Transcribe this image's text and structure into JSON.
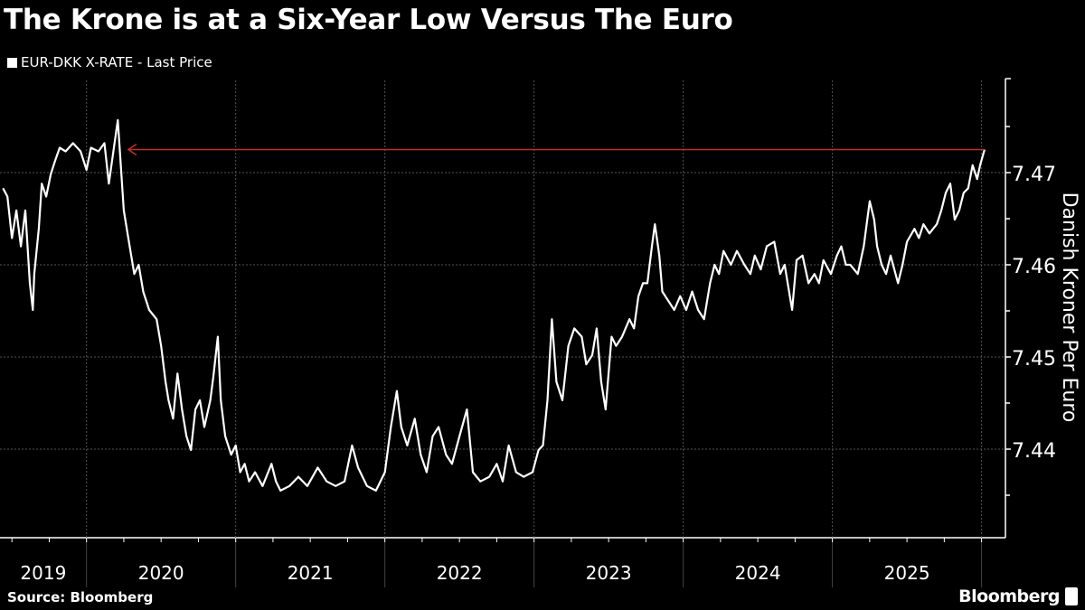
{
  "chart_data": {
    "type": "line",
    "title": "The Krone is at a Six-Year Low Versus The Euro",
    "legend": [
      "EUR-DKK X-RATE - Last Price"
    ],
    "legend_placement": "top-left",
    "ylabel": "Danish Kroner Per Euro",
    "xlabel": "",
    "ylim": [
      7.43,
      7.48
    ],
    "yticks": [
      "7.44",
      "7.45",
      "7.46",
      "7.47"
    ],
    "xticks": [
      "2019",
      "2020",
      "2021",
      "2022",
      "2023",
      "2024",
      "2025"
    ],
    "xlim": [
      2019.42,
      2026.16
    ],
    "grid": true,
    "annotation": {
      "type": "arrow",
      "value": 7.4725,
      "from": 2026.02,
      "to": 2020.28,
      "color": "#c0302a"
    },
    "series": [
      {
        "name": "EUR-DKK X-RATE - Last Price",
        "color": "#ffffff",
        "x": [
          2019.44,
          2019.47,
          2019.5,
          2019.53,
          2019.56,
          2019.59,
          2019.62,
          2019.64,
          2019.65,
          2019.68,
          2019.7,
          2019.73,
          2019.76,
          2019.79,
          2019.82,
          2019.86,
          2019.91,
          2019.96,
          2020.0,
          2020.03,
          2020.08,
          2020.12,
          2020.15,
          2020.18,
          2020.21,
          2020.23,
          2020.25,
          2020.28,
          2020.32,
          2020.35,
          2020.38,
          2020.42,
          2020.47,
          2020.5,
          2020.53,
          2020.55,
          2020.58,
          2020.61,
          2020.64,
          2020.67,
          2020.7,
          2020.73,
          2020.76,
          2020.79,
          2020.83,
          2020.85,
          2020.88,
          2020.9,
          2020.93,
          2020.97,
          2021.0,
          2021.03,
          2021.06,
          2021.09,
          2021.13,
          2021.18,
          2021.24,
          2021.27,
          2021.3,
          2021.36,
          2021.42,
          2021.48,
          2021.55,
          2021.61,
          2021.67,
          2021.73,
          2021.78,
          2021.82,
          2021.88,
          2021.94,
          2022.0,
          2022.04,
          2022.08,
          2022.11,
          2022.15,
          2022.2,
          2022.24,
          2022.28,
          2022.32,
          2022.36,
          2022.41,
          2022.45,
          2022.5,
          2022.55,
          2022.59,
          2022.64,
          2022.7,
          2022.75,
          2022.79,
          2022.83,
          2022.88,
          2022.93,
          2022.99,
          2023.03,
          2023.06,
          2023.09,
          2023.12,
          2023.15,
          2023.19,
          2023.23,
          2023.27,
          2023.32,
          2023.35,
          2023.39,
          2023.42,
          2023.45,
          2023.48,
          2023.52,
          2023.55,
          2023.59,
          2023.64,
          2023.67,
          2023.7,
          2023.73,
          2023.76,
          2023.79,
          2023.81,
          2023.84,
          2023.86,
          2023.9,
          2023.94,
          2023.98,
          2024.02,
          2024.06,
          2024.1,
          2024.14,
          2024.18,
          2024.21,
          2024.24,
          2024.27,
          2024.32,
          2024.36,
          2024.41,
          2024.45,
          2024.48,
          2024.52,
          2024.56,
          2024.61,
          2024.65,
          2024.68,
          2024.73,
          2024.76,
          2024.8,
          2024.84,
          2024.88,
          2024.91,
          2024.94,
          2024.99,
          2025.03,
          2025.06,
          2025.09,
          2025.12,
          2025.17,
          2025.21,
          2025.25,
          2025.28,
          2025.3,
          2025.33,
          2025.36,
          2025.39,
          2025.44,
          2025.47,
          2025.5,
          2025.55,
          2025.58,
          2025.61,
          2025.65,
          2025.7,
          2025.73,
          2025.76,
          2025.79,
          2025.82,
          2025.85,
          2025.88,
          2025.91,
          2025.94,
          2025.97,
          2025.99,
          2026.02
        ],
        "values": [
          7.4683,
          7.4674,
          7.4629,
          7.4659,
          7.462,
          7.4659,
          7.458,
          7.4551,
          7.459,
          7.4639,
          7.4688,
          7.4674,
          7.4698,
          7.4713,
          7.4727,
          7.4723,
          7.4732,
          7.4723,
          7.4703,
          7.4727,
          7.4723,
          7.4732,
          7.4688,
          7.4723,
          7.4757,
          7.4708,
          7.4659,
          7.4629,
          7.459,
          7.46,
          7.4571,
          7.4551,
          7.4541,
          7.4512,
          7.4473,
          7.4453,
          7.4433,
          7.4482,
          7.4443,
          7.4414,
          7.4399,
          7.4443,
          7.4453,
          7.4424,
          7.4453,
          7.4478,
          7.4522,
          7.4453,
          7.4414,
          7.4394,
          7.4404,
          7.4375,
          7.4384,
          7.4365,
          7.4375,
          7.436,
          7.4384,
          7.4365,
          7.4355,
          7.436,
          7.437,
          7.436,
          7.438,
          7.4365,
          7.436,
          7.4365,
          7.4404,
          7.438,
          7.436,
          7.4355,
          7.4375,
          7.4424,
          7.4463,
          7.4424,
          7.4404,
          7.4433,
          7.4394,
          7.4375,
          7.4414,
          7.4424,
          7.4394,
          7.4384,
          7.4414,
          7.4443,
          7.4375,
          7.4365,
          7.437,
          7.4384,
          7.4365,
          7.4404,
          7.4375,
          7.437,
          7.4375,
          7.4399,
          7.4404,
          7.4453,
          7.4541,
          7.4473,
          7.4453,
          7.4512,
          7.4531,
          7.4522,
          7.4492,
          7.4502,
          7.4531,
          7.4473,
          7.4443,
          7.4522,
          7.4512,
          7.4522,
          7.4541,
          7.4531,
          7.4566,
          7.458,
          7.458,
          7.462,
          7.4644,
          7.461,
          7.4571,
          7.4561,
          7.4551,
          7.4566,
          7.4551,
          7.4571,
          7.4551,
          7.4541,
          7.458,
          7.46,
          7.459,
          7.4615,
          7.46,
          7.4615,
          7.46,
          7.459,
          7.461,
          7.4595,
          7.462,
          7.4625,
          7.459,
          7.46,
          7.4551,
          7.4605,
          7.461,
          7.458,
          7.459,
          7.458,
          7.4605,
          7.459,
          7.461,
          7.462,
          7.46,
          7.46,
          7.459,
          7.462,
          7.4669,
          7.4649,
          7.462,
          7.46,
          7.459,
          7.461,
          7.458,
          7.46,
          7.4625,
          7.4639,
          7.4629,
          7.4644,
          7.4634,
          7.4644,
          7.4659,
          7.4678,
          7.4688,
          7.4649,
          7.4659,
          7.4678,
          7.4683,
          7.4708,
          7.4693,
          7.4708,
          7.4725
        ]
      }
    ]
  },
  "source": "Source: Bloomberg",
  "brand": "Bloomberg"
}
